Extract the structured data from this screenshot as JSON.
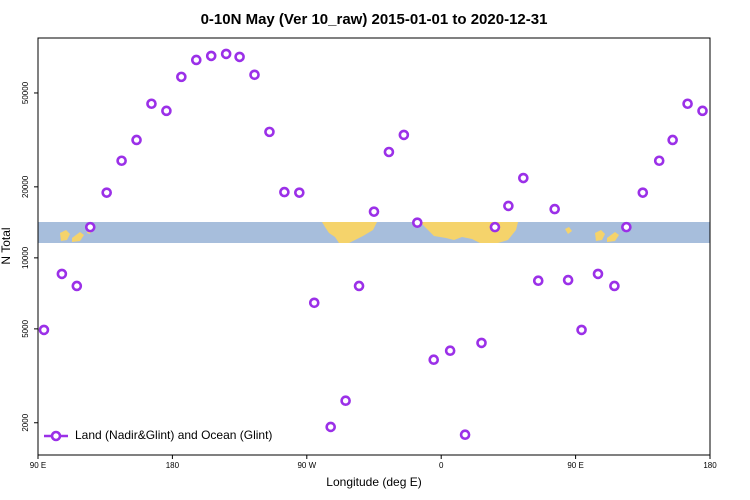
{
  "chart_data": {
    "type": "scatter",
    "title": "0-10N May (Ver 10_raw)   2015-01-01 to 2020-12-31",
    "xlabel": "Longitude (deg E)",
    "ylabel": "N Total",
    "x": [
      94,
      106,
      116,
      125,
      136,
      146,
      156,
      166,
      176,
      186,
      196,
      206,
      216,
      225,
      235,
      245,
      255,
      265,
      275,
      286,
      296,
      305,
      315,
      325,
      335,
      344,
      355,
      366,
      376,
      387,
      396,
      405,
      415,
      425,
      436,
      445,
      454,
      465,
      476,
      484,
      495,
      506,
      515,
      525,
      535
    ],
    "series": [
      {
        "name": "Land (Nadir&Glint) and Ocean (Glint)",
        "color": "#9b30e8",
        "values": [
          4950,
          8550,
          7600,
          13500,
          18900,
          25800,
          31600,
          45000,
          42000,
          58500,
          69000,
          71800,
          73200,
          71100,
          59700,
          34200,
          19000,
          18900,
          6450,
          1920,
          2480,
          7600,
          15700,
          28100,
          33200,
          14100,
          3700,
          4040,
          1780,
          4360,
          13500,
          16600,
          21800,
          8000,
          16100,
          8050,
          4950,
          8550,
          7600,
          13500,
          18900,
          25800,
          31600,
          45000,
          42000
        ]
      }
    ],
    "xlim": [
      90,
      540
    ],
    "xticks": [
      {
        "value": 90,
        "label": "90 E"
      },
      180,
      {
        "value": 270,
        "label": "90 W"
      },
      {
        "value": 360,
        "label": "0"
      },
      {
        "value": 450,
        "label": "90 E"
      },
      {
        "value": 540,
        "label": "180"
      }
    ],
    "ylim": [
      1460,
      85500
    ],
    "ylog": true,
    "yticks": [
      2000,
      5000,
      10000,
      20000,
      50000
    ],
    "legend": "lower left"
  }
}
